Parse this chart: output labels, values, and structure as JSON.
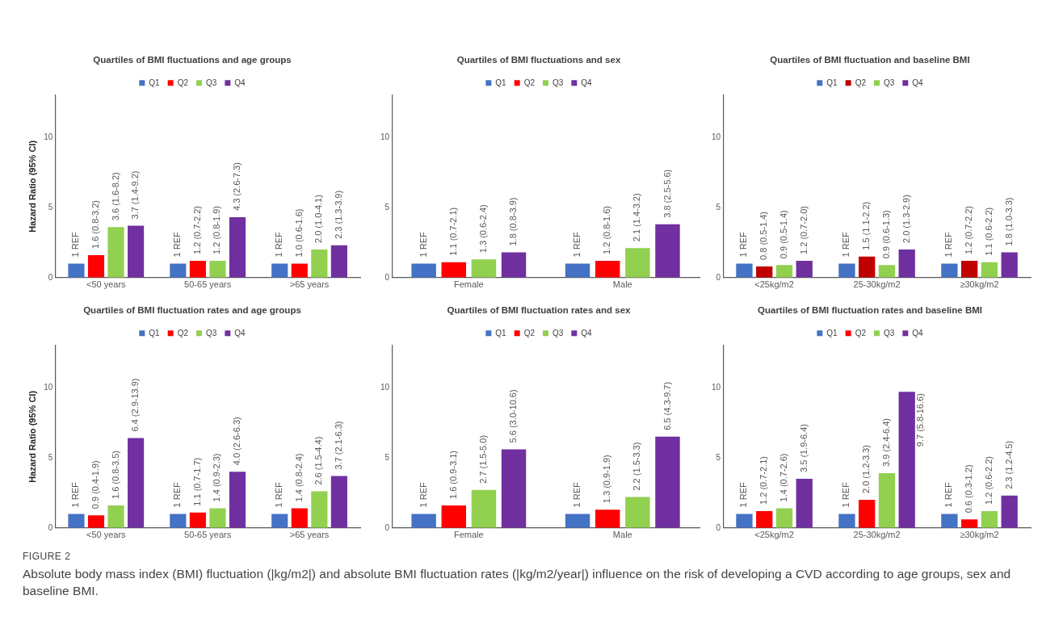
{
  "chart_data": [
    {
      "type": "bar",
      "title": "Quartiles of BMI fluctuations and age groups",
      "ylabel": "Hazard Ratio (95% CI)",
      "categories": [
        "<50 years",
        "50-65 years",
        ">65 years"
      ],
      "ylim": [
        0,
        13
      ],
      "yticks": [
        0,
        5,
        10
      ],
      "grid": false,
      "legend": "top",
      "series": [
        {
          "name": "Q1",
          "color": "#4472c4",
          "values": [
            1,
            1,
            1
          ],
          "value_labels": [
            "1 REF",
            "1 REF",
            "1 REF"
          ]
        },
        {
          "name": "Q2",
          "color": "#ff0000",
          "values": [
            1.6,
            1.2,
            1.0
          ],
          "value_labels": [
            "1.6 (0.8-3.2)",
            "1.2 (0.7-2.2)",
            "1.0 (0.6-1.6)"
          ]
        },
        {
          "name": "Q3",
          "color": "#92d050",
          "values": [
            3.6,
            1.2,
            2.0
          ],
          "value_labels": [
            "3.6 (1.6-8.2)",
            "1.2 (0.8-1.9)",
            "2.0 (1.0-4.1)"
          ]
        },
        {
          "name": "Q4",
          "color": "#7030a0",
          "values": [
            3.7,
            4.3,
            2.3
          ],
          "value_labels": [
            "3.7 (1.4-9.2)",
            "4.3 (2.6-7.3)",
            "2.3 (1.3-3.9)"
          ]
        }
      ]
    },
    {
      "type": "bar",
      "title": "Quartiles of BMI fluctuations and sex",
      "categories": [
        "Female",
        "Male"
      ],
      "ylim": [
        0,
        13
      ],
      "yticks": [
        0,
        5,
        10
      ],
      "grid": false,
      "legend": "top",
      "series": [
        {
          "name": "Q1",
          "color": "#4472c4",
          "values": [
            1,
            1
          ],
          "value_labels": [
            "1 REF",
            "1 REF"
          ]
        },
        {
          "name": "Q2",
          "color": "#ff0000",
          "values": [
            1.1,
            1.2
          ],
          "value_labels": [
            "1.1 (0.7-2.1)",
            "1.2 (0.8-1.6)"
          ]
        },
        {
          "name": "Q3",
          "color": "#92d050",
          "values": [
            1.3,
            2.1
          ],
          "value_labels": [
            "1.3 (0.6-2.4)",
            "2.1 (1.4-3.2)"
          ]
        },
        {
          "name": "Q4",
          "color": "#7030a0",
          "values": [
            1.8,
            3.8
          ],
          "value_labels": [
            "1.8 (0.8-3.9)",
            "3.8 (2.5-5.6)"
          ]
        }
      ]
    },
    {
      "type": "bar",
      "title": "Quartiles of BMI fluctuation and baseline BMI",
      "categories": [
        "<25kg/m2",
        "25-30kg/m2",
        "≥30kg/m2"
      ],
      "ylim": [
        0,
        13
      ],
      "yticks": [
        0,
        5,
        10
      ],
      "grid": false,
      "legend": "top",
      "series": [
        {
          "name": "Q1",
          "color": "#4472c4",
          "values": [
            1,
            1,
            1
          ],
          "value_labels": [
            "1 REF",
            "1 REF",
            "1 REF"
          ]
        },
        {
          "name": "Q2",
          "color": "#c00000",
          "values": [
            0.8,
            1.5,
            1.2
          ],
          "value_labels": [
            "0.8 (0.5-1.4)",
            "1.5 (1.1-2.2)",
            "1.2 (0.7-2.2)"
          ]
        },
        {
          "name": "Q3",
          "color": "#92d050",
          "values": [
            0.9,
            0.9,
            1.1
          ],
          "value_labels": [
            "0.9 (0.5-1.4)",
            "0.9 (0.6-1.3)",
            "1.1 (0.6-2.2)"
          ]
        },
        {
          "name": "Q4",
          "color": "#7030a0",
          "values": [
            1.2,
            2.0,
            1.8
          ],
          "value_labels": [
            "1.2 (0.7-2.0)",
            "2.0 (1.3-2.9)",
            "1.8 (1.0-3.3)"
          ]
        }
      ]
    },
    {
      "type": "bar",
      "title": "Quartiles of BMI fluctuation rates and age groups",
      "ylabel": "Hazard Ratio (95% CI)",
      "categories": [
        "<50 years",
        "50-65 years",
        ">65 years"
      ],
      "ylim": [
        0,
        13
      ],
      "yticks": [
        0,
        5,
        10
      ],
      "grid": false,
      "legend": "top",
      "series": [
        {
          "name": "Q1",
          "color": "#4472c4",
          "values": [
            1,
            1,
            1
          ],
          "value_labels": [
            "1 REF",
            "1 REF",
            "1 REF"
          ]
        },
        {
          "name": "Q2",
          "color": "#ff0000",
          "values": [
            0.9,
            1.1,
            1.4
          ],
          "value_labels": [
            "0.9 (0.4-1.9)",
            "1.1 (0.7-1.7)",
            "1.4 (0.8-2.4)"
          ]
        },
        {
          "name": "Q3",
          "color": "#92d050",
          "values": [
            1.6,
            1.4,
            2.6
          ],
          "value_labels": [
            "1.6 (0.8-3.5)",
            "1.4 (0.9-2.3)",
            "2.6 (1.5-4.4)"
          ]
        },
        {
          "name": "Q4",
          "color": "#7030a0",
          "values": [
            6.4,
            4.0,
            3.7
          ],
          "value_labels": [
            "6.4 (2.9-13.9)",
            "4.0 (2.6-6.3)",
            "3.7 (2.1-6.3)"
          ]
        }
      ]
    },
    {
      "type": "bar",
      "title": "Quartiles of BMI fluctuation rates and sex",
      "categories": [
        "Female",
        "Male"
      ],
      "ylim": [
        0,
        13
      ],
      "yticks": [
        0,
        5,
        10
      ],
      "grid": false,
      "legend": "top",
      "series": [
        {
          "name": "Q1",
          "color": "#4472c4",
          "values": [
            1,
            1
          ],
          "value_labels": [
            "1 REF",
            "1 REF"
          ]
        },
        {
          "name": "Q2",
          "color": "#ff0000",
          "values": [
            1.6,
            1.3
          ],
          "value_labels": [
            "1.6 (0.9-3.1)",
            "1.3 (0.9-1.9)"
          ]
        },
        {
          "name": "Q3",
          "color": "#92d050",
          "values": [
            2.7,
            2.2
          ],
          "value_labels": [
            "2.7 (1.5-5.0)",
            "2.2 (1.5-3.3)"
          ]
        },
        {
          "name": "Q4",
          "color": "#7030a0",
          "values": [
            5.6,
            6.5
          ],
          "value_labels": [
            "5.6 (3.0-10.6)",
            "6.5 (4.3-9.7)"
          ]
        }
      ]
    },
    {
      "type": "bar",
      "title": "Quartiles of BMI fluctuation rates and baseline BMI",
      "categories": [
        "<25kg/m2",
        "25-30kg/m2",
        "≥30kg/m2"
      ],
      "ylim": [
        0,
        13
      ],
      "yticks": [
        0,
        5,
        10
      ],
      "grid": false,
      "legend": "top",
      "annotations": [
        "FIGURE 2",
        "Absolute body mass index (BMI) fluctuation (|kg/m2|) and absolute BMI fluctuation rates (|kg/m2/year|) influence on the risk of developing a CVD according to age groups, sex and baseline BMI."
      ],
      "series": [
        {
          "name": "Q1",
          "color": "#4472c4",
          "values": [
            1,
            1,
            1
          ],
          "value_labels": [
            "1 REF",
            "1 REF",
            "1 REF"
          ]
        },
        {
          "name": "Q2",
          "color": "#ff0000",
          "values": [
            1.2,
            2.0,
            0.6
          ],
          "value_labels": [
            "1.2 (0.7-2.1)",
            "2.0 (1.2-3.3)",
            "0.6 (0.3-1.2)"
          ]
        },
        {
          "name": "Q3",
          "color": "#92d050",
          "values": [
            1.4,
            3.9,
            1.2
          ],
          "value_labels": [
            "1.4 (0.7-2.6)",
            "3.9 (2.4-6.4)",
            "1.2 (0.6-2.2)"
          ]
        },
        {
          "name": "Q4",
          "color": "#7030a0",
          "values": [
            3.5,
            9.7,
            2.3
          ],
          "value_labels": [
            "3.5 (1.9-6.4)",
            "9.7 (5.8-16.6)",
            "2.3 (1.2-4.5)"
          ]
        }
      ]
    }
  ]
}
